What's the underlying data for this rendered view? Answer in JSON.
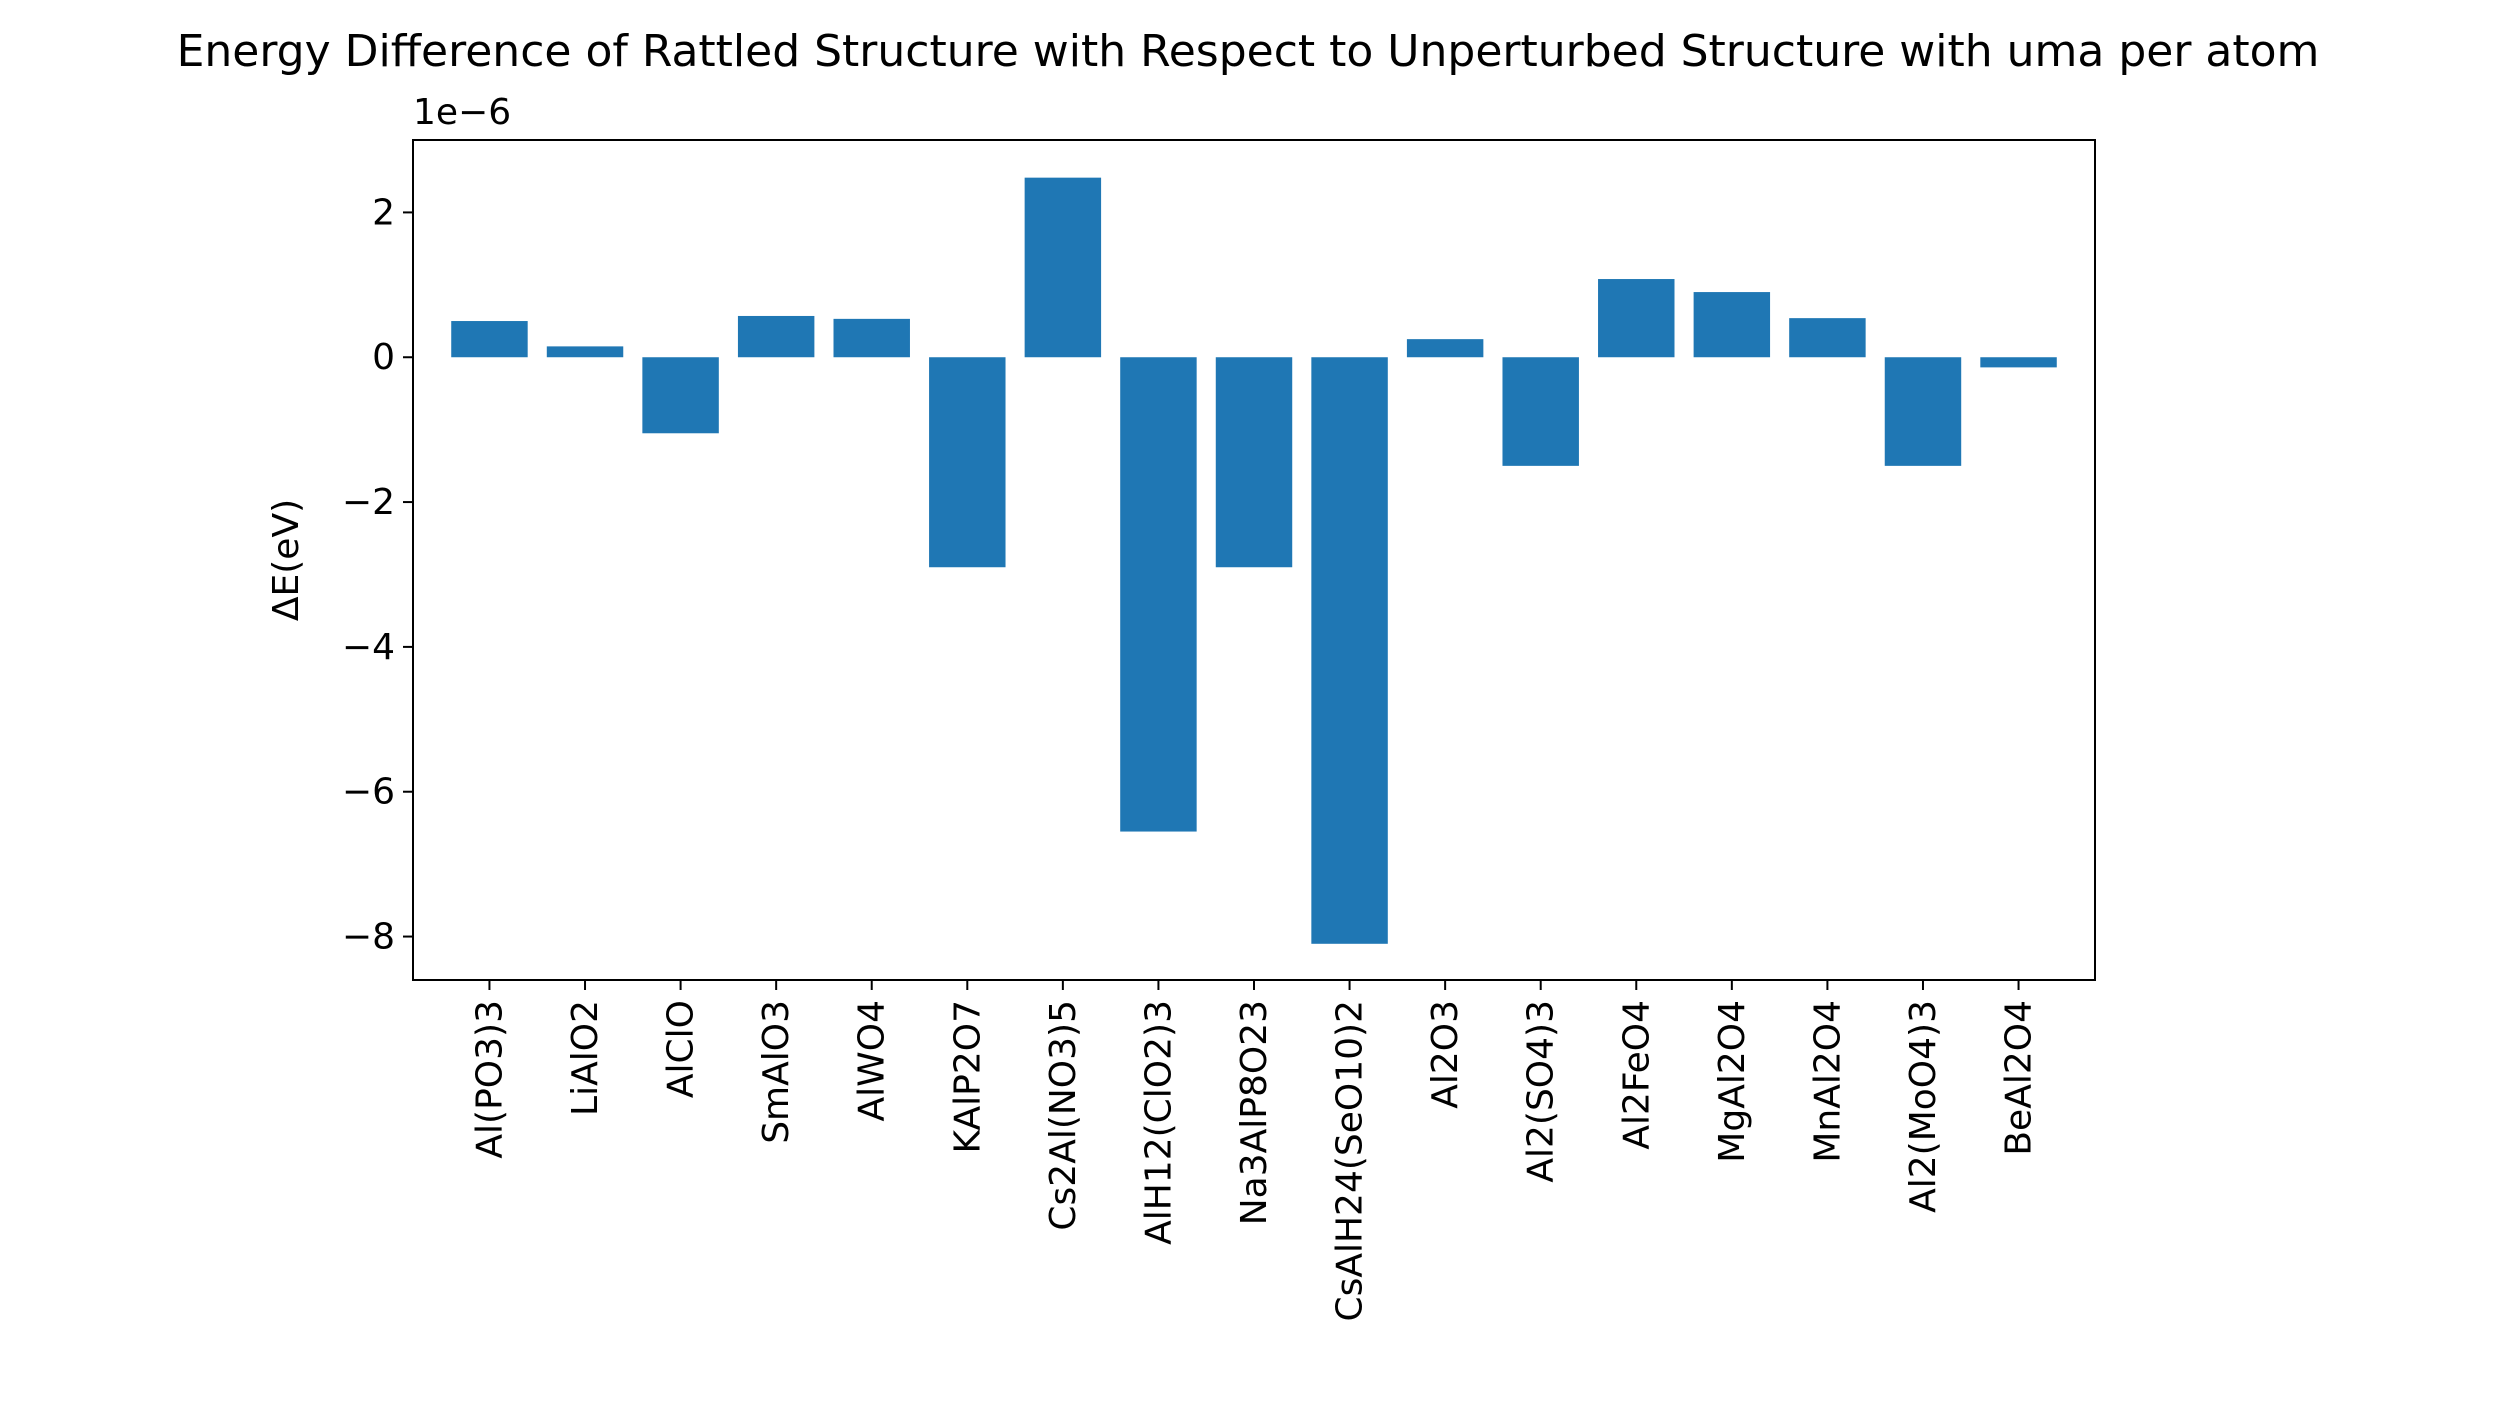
{
  "chart_data": {
    "type": "bar",
    "title": "Energy Difference of Rattled Structure with Respect to Unperturbed Structure with uma per atom",
    "xlabel": "",
    "ylabel": "ΔE(eV)",
    "offset_text": "1e−6",
    "scale": 1e-06,
    "categories": [
      "Al(PO3)3",
      "LiAlO2",
      "AlClO",
      "SmAlO3",
      "AlWO4",
      "KAlP2O7",
      "Cs2Al(NO3)5",
      "AlH12(ClO2)3",
      "Na3AlP8O23",
      "CsAlH24(SeO10)2",
      "Al2O3",
      "Al2(SO4)3",
      "Al2FeO4",
      "MgAl2O4",
      "MnAl2O4",
      "Al2(MoO4)3",
      "BeAl2O4"
    ],
    "values": [
      0.5,
      0.15,
      -1.05,
      0.57,
      0.53,
      -2.9,
      2.48,
      -6.55,
      -2.9,
      -8.1,
      0.25,
      -1.5,
      1.08,
      0.9,
      0.54,
      -1.5,
      -0.14
    ],
    "ylim": [
      -8.6,
      3.0
    ],
    "yticks": [
      -8,
      -6,
      -4,
      -2,
      0,
      2
    ],
    "ytick_labels": [
      "−8",
      "−6",
      "−4",
      "−2",
      "0",
      "2"
    ],
    "bar_color": "#1f77b4",
    "grid": false,
    "legend": "none"
  }
}
